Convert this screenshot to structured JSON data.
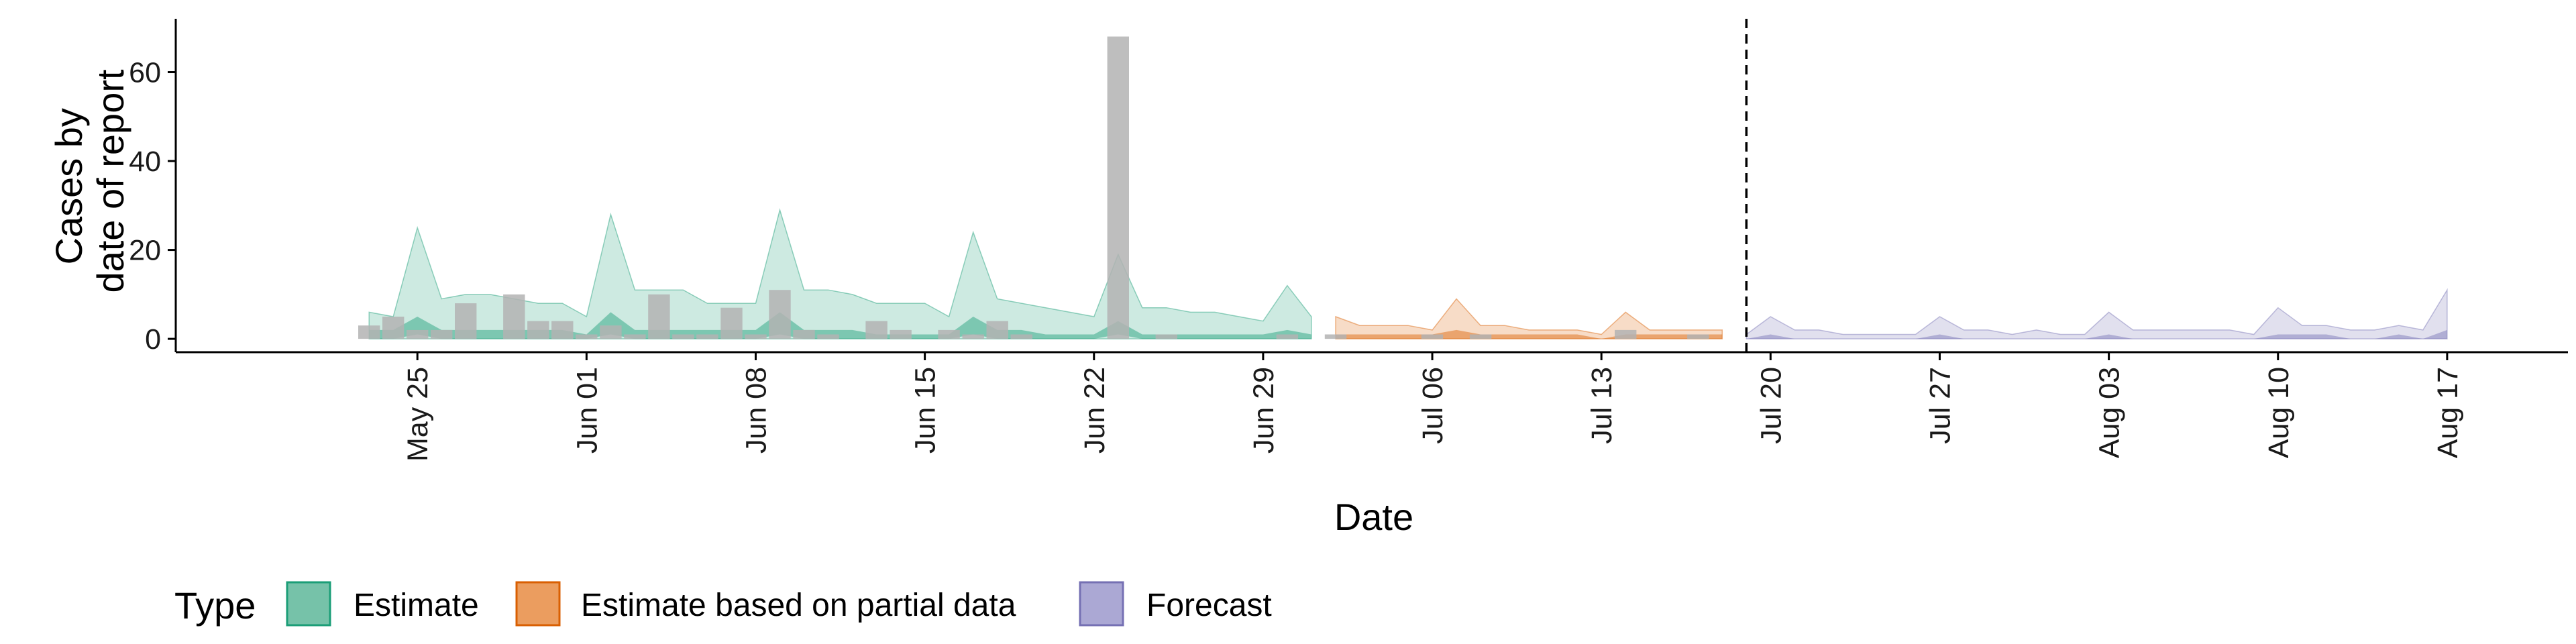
{
  "chart_data": {
    "type": "area",
    "xlabel": "Date",
    "ylabel_lines": [
      "Cases by",
      "date of report"
    ],
    "ylim": [
      -3,
      72
    ],
    "xlim": [
      "2020-05-15",
      "2020-08-22"
    ],
    "y_ticks": [
      0,
      20,
      40,
      60
    ],
    "x_ticks": [
      {
        "date": "2020-05-25",
        "label": "May 25"
      },
      {
        "date": "2020-06-01",
        "label": "Jun 01"
      },
      {
        "date": "2020-06-08",
        "label": "Jun 08"
      },
      {
        "date": "2020-06-15",
        "label": "Jun 15"
      },
      {
        "date": "2020-06-22",
        "label": "Jun 22"
      },
      {
        "date": "2020-06-29",
        "label": "Jun 29"
      },
      {
        "date": "2020-07-06",
        "label": "Jul 06"
      },
      {
        "date": "2020-07-13",
        "label": "Jul 13"
      },
      {
        "date": "2020-07-20",
        "label": "Jul 20"
      },
      {
        "date": "2020-07-27",
        "label": "Jul 27"
      },
      {
        "date": "2020-08-03",
        "label": "Aug 03"
      },
      {
        "date": "2020-08-10",
        "label": "Aug 10"
      },
      {
        "date": "2020-08-17",
        "label": "Aug 17"
      }
    ],
    "forecast_date": "2020-07-19",
    "reported_cases": [
      {
        "date": "2020-05-23",
        "value": 3
      },
      {
        "date": "2020-05-24",
        "value": 5
      },
      {
        "date": "2020-05-25",
        "value": 2
      },
      {
        "date": "2020-05-26",
        "value": 2
      },
      {
        "date": "2020-05-27",
        "value": 8
      },
      {
        "date": "2020-05-29",
        "value": 10
      },
      {
        "date": "2020-05-30",
        "value": 4
      },
      {
        "date": "2020-05-31",
        "value": 4
      },
      {
        "date": "2020-06-01",
        "value": 1
      },
      {
        "date": "2020-06-02",
        "value": 3
      },
      {
        "date": "2020-06-03",
        "value": 1
      },
      {
        "date": "2020-06-04",
        "value": 10
      },
      {
        "date": "2020-06-05",
        "value": 1
      },
      {
        "date": "2020-06-06",
        "value": 1
      },
      {
        "date": "2020-06-07",
        "value": 7
      },
      {
        "date": "2020-06-08",
        "value": 1
      },
      {
        "date": "2020-06-09",
        "value": 11
      },
      {
        "date": "2020-06-10",
        "value": 2
      },
      {
        "date": "2020-06-11",
        "value": 1
      },
      {
        "date": "2020-06-13",
        "value": 4
      },
      {
        "date": "2020-06-14",
        "value": 2
      },
      {
        "date": "2020-06-16",
        "value": 2
      },
      {
        "date": "2020-06-17",
        "value": 1
      },
      {
        "date": "2020-06-18",
        "value": 4
      },
      {
        "date": "2020-06-19",
        "value": 1
      },
      {
        "date": "2020-06-23",
        "value": 68
      },
      {
        "date": "2020-06-25",
        "value": 1
      },
      {
        "date": "2020-06-30",
        "value": 1
      },
      {
        "date": "2020-07-02",
        "value": 1
      },
      {
        "date": "2020-07-06",
        "value": 1
      },
      {
        "date": "2020-07-08",
        "value": 1
      },
      {
        "date": "2020-07-14",
        "value": 2
      },
      {
        "date": "2020-07-17",
        "value": 1
      }
    ],
    "series": [
      {
        "name": "Estimate",
        "color": "#1b9e77",
        "x": [
          "2020-05-23",
          "2020-05-24",
          "2020-05-25",
          "2020-05-26",
          "2020-05-27",
          "2020-05-28",
          "2020-05-29",
          "2020-05-30",
          "2020-05-31",
          "2020-06-01",
          "2020-06-02",
          "2020-06-03",
          "2020-06-04",
          "2020-06-05",
          "2020-06-06",
          "2020-06-07",
          "2020-06-08",
          "2020-06-09",
          "2020-06-10",
          "2020-06-11",
          "2020-06-12",
          "2020-06-13",
          "2020-06-14",
          "2020-06-15",
          "2020-06-16",
          "2020-06-17",
          "2020-06-18",
          "2020-06-19",
          "2020-06-20",
          "2020-06-21",
          "2020-06-22",
          "2020-06-23",
          "2020-06-24",
          "2020-06-25",
          "2020-06-26",
          "2020-06-27",
          "2020-06-28",
          "2020-06-29",
          "2020-06-30",
          "2020-07-01"
        ],
        "upper_outer": [
          6,
          5,
          25,
          9,
          10,
          10,
          9,
          8,
          8,
          5,
          28,
          11,
          11,
          11,
          8,
          8,
          8,
          29,
          11,
          11,
          10,
          8,
          8,
          8,
          5,
          24,
          9,
          8,
          7,
          6,
          5,
          19,
          7,
          7,
          6,
          6,
          5,
          4,
          12,
          5
        ],
        "lower_outer": [
          0,
          0,
          0,
          0,
          0,
          0,
          0,
          0,
          0,
          0,
          0,
          0,
          0,
          0,
          0,
          0,
          0,
          0,
          0,
          0,
          0,
          0,
          0,
          0,
          0,
          0,
          0,
          0,
          0,
          0,
          0,
          0,
          0,
          0,
          0,
          0,
          0,
          0,
          0,
          0
        ],
        "upper_inner": [
          2,
          2,
          5,
          2,
          2,
          2,
          2,
          2,
          2,
          1,
          6,
          2,
          2,
          2,
          2,
          2,
          2,
          6,
          2,
          2,
          2,
          1,
          1,
          1,
          1,
          5,
          2,
          2,
          1,
          1,
          1,
          4,
          1,
          1,
          1,
          1,
          1,
          1,
          2,
          1
        ],
        "lower_inner": [
          0,
          0,
          1,
          0,
          0,
          0,
          0,
          0,
          0,
          0,
          1,
          0,
          0,
          0,
          0,
          0,
          0,
          1,
          0,
          0,
          0,
          0,
          0,
          0,
          0,
          1,
          0,
          0,
          0,
          0,
          0,
          1,
          0,
          0,
          0,
          0,
          0,
          0,
          0,
          0
        ]
      },
      {
        "name": "Estimate based on partial data",
        "color": "#d95f02",
        "x": [
          "2020-07-02",
          "2020-07-03",
          "2020-07-04",
          "2020-07-05",
          "2020-07-06",
          "2020-07-07",
          "2020-07-08",
          "2020-07-09",
          "2020-07-10",
          "2020-07-11",
          "2020-07-12",
          "2020-07-13",
          "2020-07-14",
          "2020-07-15",
          "2020-07-16",
          "2020-07-17",
          "2020-07-18"
        ],
        "upper_outer": [
          5,
          3,
          3,
          3,
          2,
          9,
          3,
          3,
          2,
          2,
          2,
          1,
          6,
          2,
          2,
          2,
          2
        ],
        "lower_outer": [
          0,
          0,
          0,
          0,
          0,
          0,
          0,
          0,
          0,
          0,
          0,
          0,
          0,
          0,
          0,
          0,
          0
        ],
        "upper_inner": [
          1,
          1,
          1,
          1,
          1,
          2,
          1,
          1,
          1,
          1,
          1,
          0,
          1,
          1,
          1,
          1,
          1
        ],
        "lower_inner": [
          0,
          0,
          0,
          0,
          0,
          0,
          0,
          0,
          0,
          0,
          0,
          0,
          0,
          0,
          0,
          0,
          0
        ]
      },
      {
        "name": "Forecast",
        "color": "#7570b3",
        "x": [
          "2020-07-19",
          "2020-07-20",
          "2020-07-21",
          "2020-07-22",
          "2020-07-23",
          "2020-07-24",
          "2020-07-25",
          "2020-07-26",
          "2020-07-27",
          "2020-07-28",
          "2020-07-29",
          "2020-07-30",
          "2020-07-31",
          "2020-08-01",
          "2020-08-02",
          "2020-08-03",
          "2020-08-04",
          "2020-08-05",
          "2020-08-06",
          "2020-08-07",
          "2020-08-08",
          "2020-08-09",
          "2020-08-10",
          "2020-08-11",
          "2020-08-12",
          "2020-08-13",
          "2020-08-14",
          "2020-08-15",
          "2020-08-16",
          "2020-08-17"
        ],
        "upper_outer": [
          1,
          5,
          2,
          2,
          1,
          1,
          1,
          1,
          5,
          2,
          2,
          1,
          2,
          1,
          1,
          6,
          2,
          2,
          2,
          2,
          2,
          1,
          7,
          3,
          3,
          2,
          2,
          3,
          2,
          11
        ],
        "lower_outer": [
          0,
          0,
          0,
          0,
          0,
          0,
          0,
          0,
          0,
          0,
          0,
          0,
          0,
          0,
          0,
          0,
          0,
          0,
          0,
          0,
          0,
          0,
          0,
          0,
          0,
          0,
          0,
          0,
          0,
          0
        ],
        "upper_inner": [
          0,
          1,
          0,
          0,
          0,
          0,
          0,
          0,
          1,
          0,
          0,
          0,
          0,
          0,
          0,
          1,
          0,
          0,
          0,
          0,
          0,
          0,
          1,
          1,
          1,
          0,
          0,
          1,
          0,
          2
        ],
        "lower_inner": [
          0,
          0,
          0,
          0,
          0,
          0,
          0,
          0,
          0,
          0,
          0,
          0,
          0,
          0,
          0,
          0,
          0,
          0,
          0,
          0,
          0,
          0,
          0,
          0,
          0,
          0,
          0,
          0,
          0,
          0
        ]
      }
    ],
    "legend": {
      "title": "Type",
      "position": "bottom",
      "items": [
        {
          "label": "Estimate",
          "fill": "#76c2a9",
          "border": "#1b9e77"
        },
        {
          "label": "Estimate based on partial data",
          "fill": "#eb9d5f",
          "border": "#d95f02"
        },
        {
          "label": "Forecast",
          "fill": "#aba8d4",
          "border": "#7570b3"
        }
      ]
    },
    "colors": {
      "bars": "#b3b3b3",
      "axis": "#000000"
    }
  }
}
